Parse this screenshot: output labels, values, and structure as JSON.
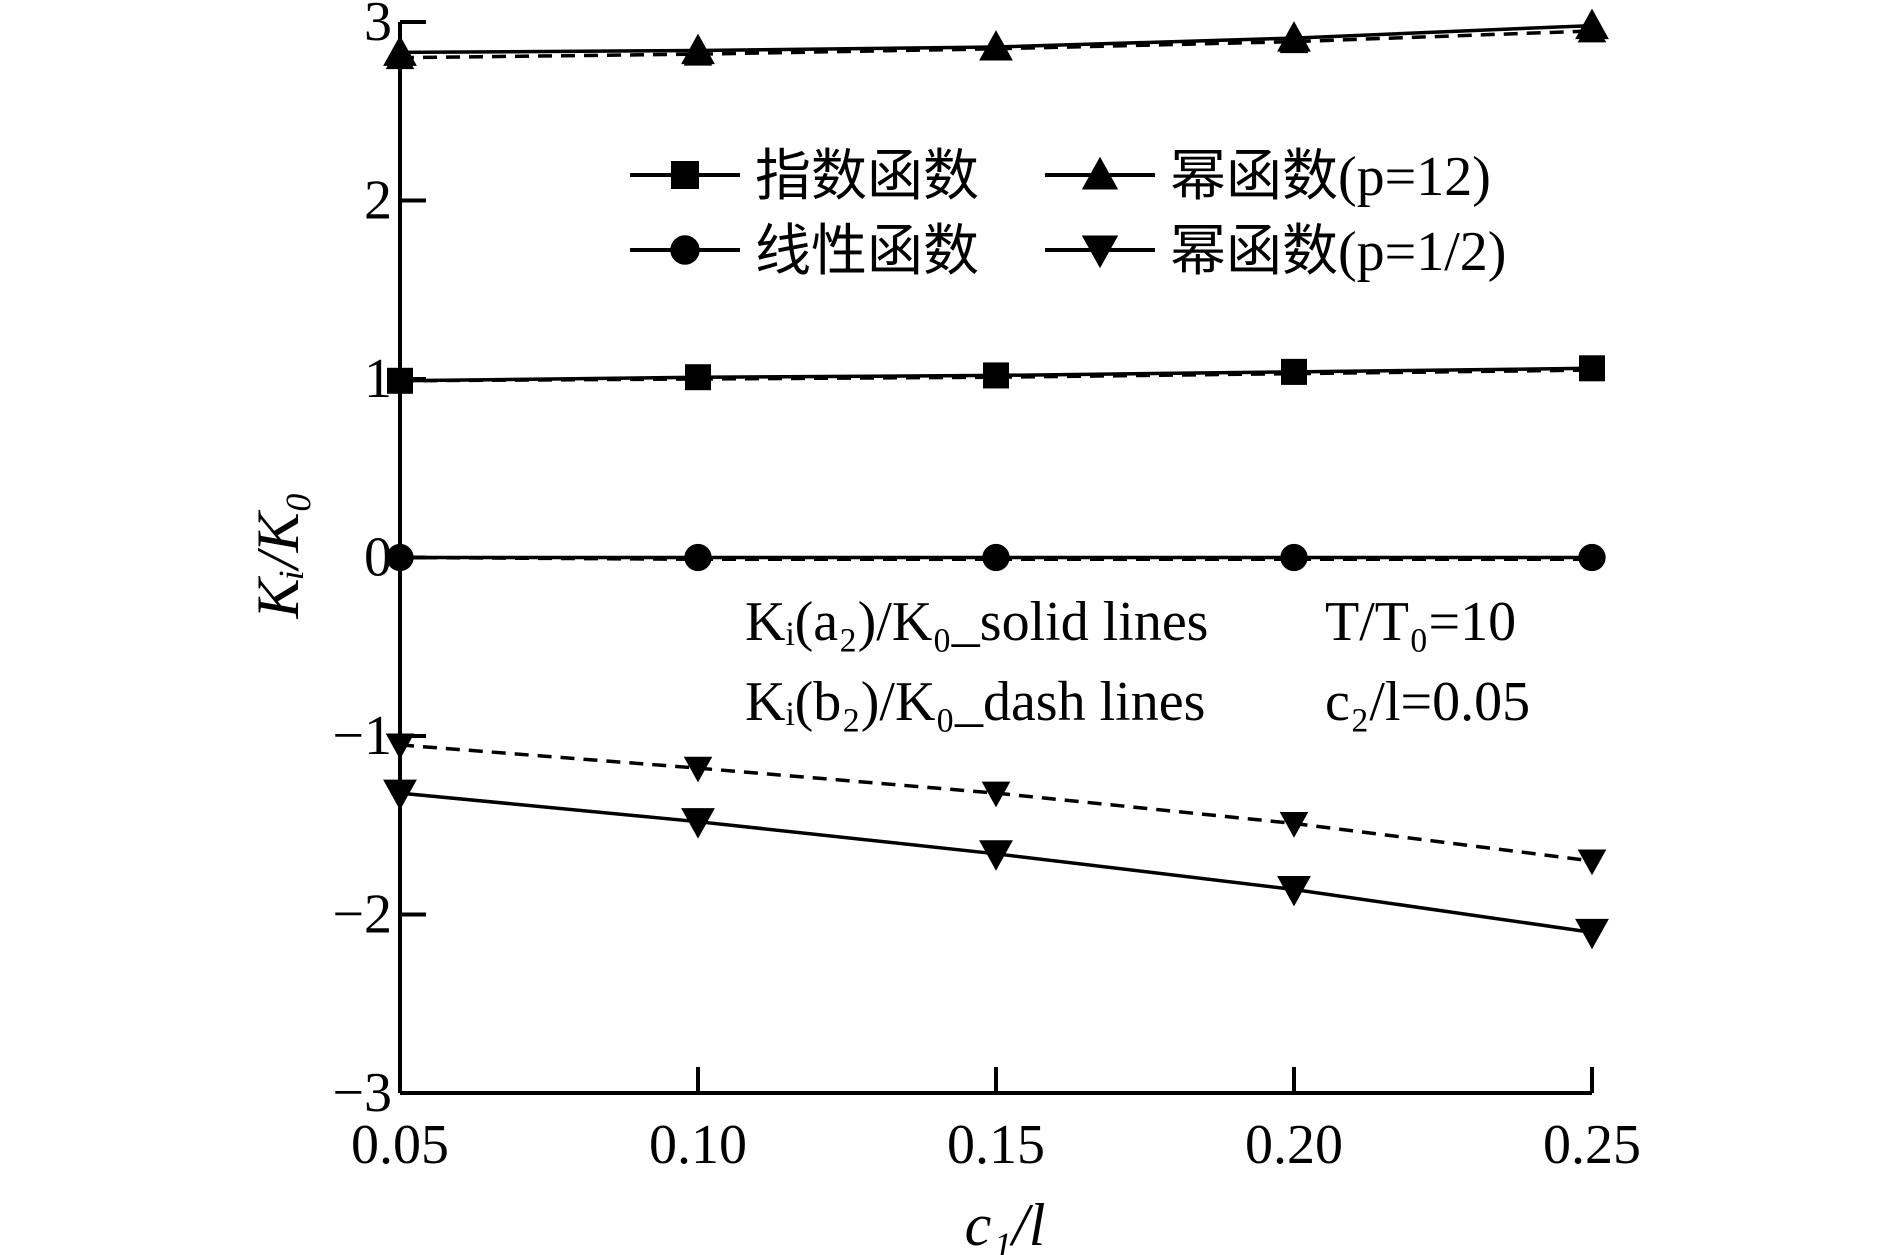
{
  "chart_data": {
    "type": "line",
    "title": "",
    "xlabel": "c₁/l",
    "ylabel": "Kᵢ/K₀",
    "xlim": [
      0.05,
      0.25
    ],
    "ylim": [
      -3,
      3
    ],
    "x_ticks": [
      "0.05",
      "0.10",
      "0.15",
      "0.20",
      "0.25"
    ],
    "y_ticks": [
      "−3",
      "−2",
      "−1",
      "0",
      "1",
      "2",
      "3"
    ],
    "grid": false,
    "legend_placement": "top-right",
    "x": [
      0.05,
      0.1,
      0.15,
      0.2,
      0.25
    ],
    "series": [
      {
        "name": "指数函数",
        "marker": "square",
        "style": "solid",
        "values": [
          0.99,
          1.01,
          1.02,
          1.04,
          1.06
        ]
      },
      {
        "name": "指数函数",
        "marker": "square",
        "style": "dash",
        "values": [
          0.99,
          1.0,
          1.01,
          1.03,
          1.05
        ]
      },
      {
        "name": "线性函数",
        "marker": "circle",
        "style": "solid",
        "values": [
          0.0,
          0.0,
          0.0,
          0.0,
          0.0
        ]
      },
      {
        "name": "线性函数",
        "marker": "circle",
        "style": "dash",
        "values": [
          0.0,
          -0.01,
          -0.01,
          -0.01,
          -0.01
        ]
      },
      {
        "name": "幂函数(p=12)",
        "marker": "triangle-up",
        "style": "solid",
        "values": [
          2.83,
          2.84,
          2.86,
          2.91,
          2.98
        ]
      },
      {
        "name": "幂函数(p=12)",
        "marker": "triangle-up",
        "style": "dash",
        "values": [
          2.8,
          2.82,
          2.85,
          2.89,
          2.95
        ]
      },
      {
        "name": "幂函数(p=1/2)",
        "marker": "triangle-down",
        "style": "solid",
        "values": [
          -1.32,
          -1.48,
          -1.66,
          -1.86,
          -2.1
        ]
      },
      {
        "name": "幂函数(p=1/2)",
        "marker": "triangle-down",
        "style": "dash",
        "values": [
          -1.05,
          -1.18,
          -1.32,
          -1.49,
          -1.7
        ]
      }
    ],
    "legend": [
      {
        "label": "指数函数",
        "marker": "square"
      },
      {
        "label": "幂函数(p=12)",
        "marker": "triangle-up"
      },
      {
        "label": "线性函数",
        "marker": "circle"
      },
      {
        "label": "幂函数(p=1/2)",
        "marker": "triangle-down"
      }
    ],
    "annotations": [
      "Kᵢ(a₂)/K₀_solid lines",
      "T/T₀=10",
      "Kᵢ(b₂)/K₀_dash lines",
      "c₂/l=0.05"
    ]
  }
}
